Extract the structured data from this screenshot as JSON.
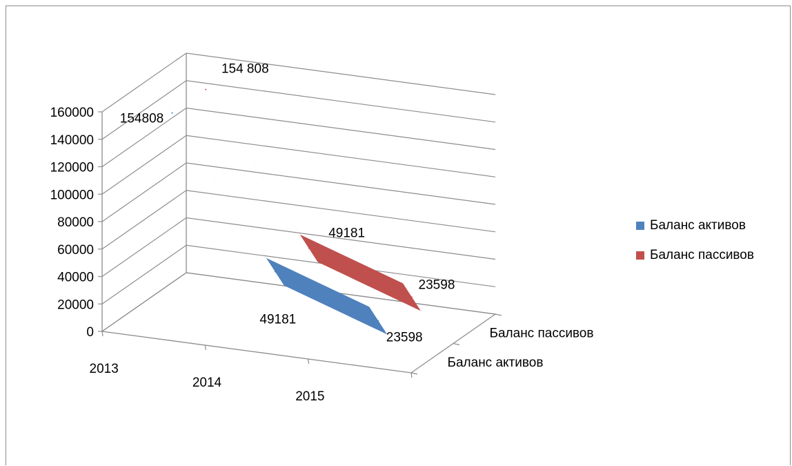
{
  "chart_data": {
    "type": "line",
    "title": "",
    "categories": [
      "2013",
      "2014",
      "2015"
    ],
    "series": [
      {
        "name": "Баланс активов",
        "values": [
          154808,
          49181,
          23598
        ],
        "labels": [
          "154808",
          "49181",
          "23598"
        ],
        "color": "#4f81bd"
      },
      {
        "name": "Баланс пассивов",
        "values": [
          154808,
          49181,
          23598
        ],
        "labels": [
          "154 808",
          "49181",
          "23598"
        ],
        "color": "#c0504d"
      }
    ],
    "y_ticks": [
      "0",
      "20000",
      "40000",
      "60000",
      "80000",
      "100000",
      "120000",
      "140000",
      "160000"
    ],
    "ylim": [
      0,
      160000
    ],
    "depth_labels": [
      "Баланс пассивов",
      "Баланс активов"
    ],
    "grid": true,
    "legend": "right"
  }
}
